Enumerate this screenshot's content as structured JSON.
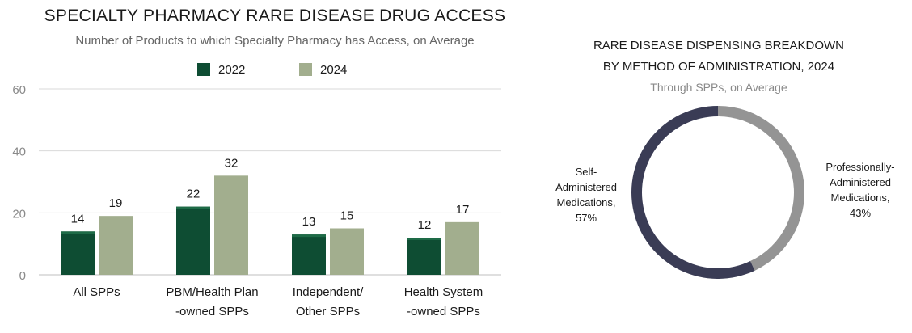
{
  "left_panel": {
    "title": "SPECIALTY PHARMACY RARE DISEASE DRUG ACCESS",
    "subtitle": "Number of Products to which Specialty Pharmacy has Access, on Average"
  },
  "right_panel": {
    "title_line1": "RARE DISEASE DISPENSING BREAKDOWN",
    "title_line2": "BY METHOD OF ADMINISTRATION, 2024",
    "subtitle": "Through SPPs, on Average"
  },
  "chart_data": [
    {
      "type": "bar",
      "title": "SPECIALTY PHARMACY RARE DISEASE DRUG ACCESS",
      "subtitle": "Number of Products to which Specialty Pharmacy has Access, on Average",
      "categories": [
        [
          "All SPPs"
        ],
        [
          "PBM/Health Plan",
          "-owned SPPs"
        ],
        [
          "Independent/",
          "Other SPPs"
        ],
        [
          "Health System",
          "-owned SPPs"
        ]
      ],
      "series": [
        {
          "name": "2022",
          "values": [
            14,
            22,
            13,
            12
          ],
          "color": "#0e4d33"
        },
        {
          "name": "2024",
          "values": [
            19,
            32,
            15,
            17
          ],
          "color": "#a2ae8e"
        }
      ],
      "ylim": [
        0,
        60
      ],
      "yticks": [
        0,
        20,
        40,
        60
      ],
      "grid": true,
      "legend": "top-center"
    },
    {
      "type": "pie",
      "title": "RARE DISEASE DISPENSING BREAKDOWN BY METHOD OF ADMINISTRATION, 2024",
      "subtitle": "Through SPPs, on Average",
      "donut": true,
      "slices": [
        {
          "label_lines": [
            "Self-",
            "Administered",
            "Medications,",
            "57%"
          ],
          "value": 57,
          "color": "#3a3c55"
        },
        {
          "label_lines": [
            "Professionally-",
            "Administered",
            "Medications,",
            "43%"
          ],
          "value": 43,
          "color": "#949494"
        }
      ]
    }
  ]
}
